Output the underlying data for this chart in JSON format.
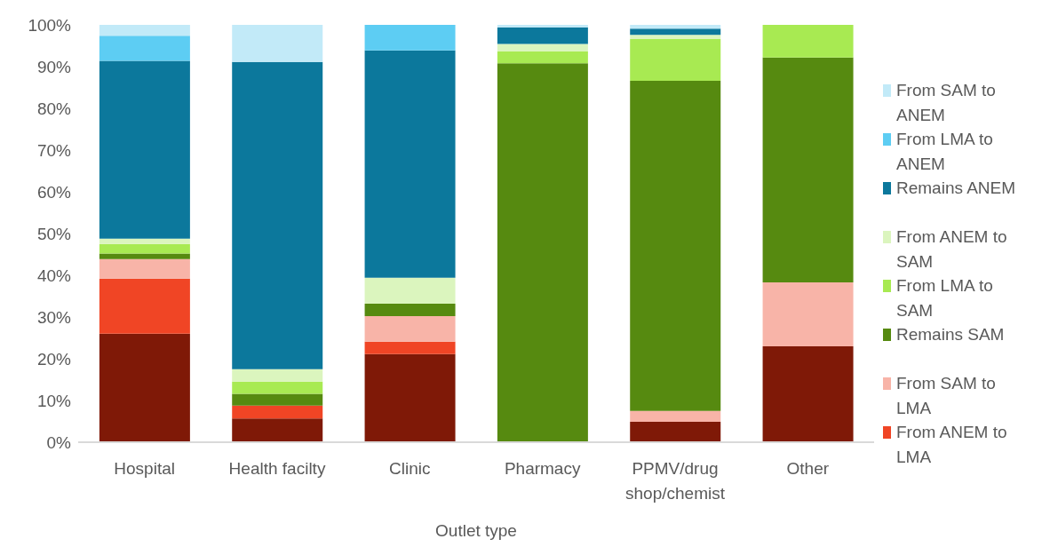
{
  "chart_data": {
    "type": "bar",
    "stacked": true,
    "xlabel": "Outlet type",
    "categories": [
      "Hospital",
      "Health facilty",
      "Clinic",
      "Pharmacy",
      "PPMV/drug shop/chemist",
      "Other"
    ],
    "ylim": [
      0,
      100
    ],
    "yticks": [
      {
        "value": 0,
        "label": "0%"
      },
      {
        "value": 10,
        "label": "10%"
      },
      {
        "value": 20,
        "label": "20%"
      },
      {
        "value": 30,
        "label": "30%"
      },
      {
        "value": 40,
        "label": "40%"
      },
      {
        "value": 50,
        "label": "50%"
      },
      {
        "value": 60,
        "label": "60%"
      },
      {
        "value": 70,
        "label": "70%"
      },
      {
        "value": 80,
        "label": "80%"
      },
      {
        "value": 90,
        "label": "90%"
      },
      {
        "value": 100,
        "label": "100%"
      }
    ],
    "grid": false,
    "legend": "right",
    "series": [
      {
        "color": "#7f1907",
        "values": [
          26.0,
          5.7,
          21.1,
          null,
          4.9,
          23.0
        ]
      },
      {
        "name": "From ANEM to LMA",
        "color": "#f04525",
        "values": [
          13.2,
          3.1,
          3.0,
          null,
          null,
          null
        ]
      },
      {
        "name": "From SAM to LMA",
        "color": "#f8b4a8",
        "values": [
          4.7,
          null,
          6.1,
          null,
          2.6,
          15.3
        ]
      },
      {
        "name": "Remains SAM",
        "color": "#568a10",
        "values": [
          1.3,
          2.8,
          3.0,
          90.8,
          79.1,
          53.9
        ]
      },
      {
        "name": "From LMA to SAM",
        "color": "#a8ea52",
        "values": [
          2.3,
          2.9,
          null,
          2.8,
          10.0,
          7.8
        ]
      },
      {
        "name": "From ANEM to SAM",
        "color": "#dbf5be",
        "values": [
          1.3,
          3.0,
          6.2,
          1.8,
          1.0,
          null
        ]
      },
      {
        "name": "Remains ANEM",
        "color": "#0c789c",
        "values": [
          42.6,
          73.6,
          54.5,
          4.0,
          1.5,
          null
        ]
      },
      {
        "name": "From LMA to ANEM",
        "color": "#5dcdf3",
        "values": [
          6.0,
          null,
          6.1,
          null,
          null,
          null
        ]
      },
      {
        "name": "From SAM to ANEM",
        "color": "#c2eaf8",
        "values": [
          2.6,
          8.9,
          null,
          0.6,
          0.9,
          null
        ]
      }
    ]
  }
}
